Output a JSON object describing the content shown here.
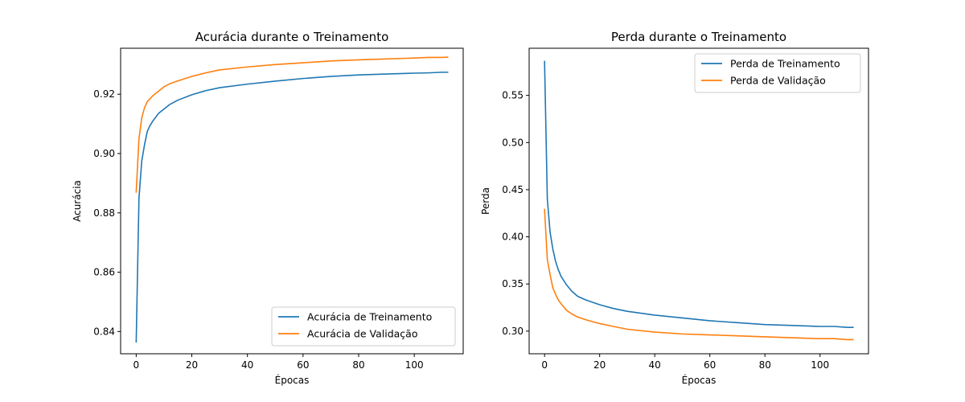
{
  "chart_data": [
    {
      "type": "line",
      "title": "Acurácia durante o Treinamento",
      "xlabel": "Épocas",
      "ylabel": "Acurácia",
      "xlim": [
        -5.6,
        117.6
      ],
      "ylim": [
        0.8325,
        0.9355
      ],
      "xticks": [
        0,
        20,
        40,
        60,
        80,
        100
      ],
      "xtick_labels": [
        "0",
        "20",
        "40",
        "60",
        "80",
        "100"
      ],
      "yticks": [
        0.84,
        0.86,
        0.88,
        0.9,
        0.92
      ],
      "ytick_labels": [
        "0.84",
        "0.86",
        "0.88",
        "0.90",
        "0.92"
      ],
      "grid": false,
      "legend_position": "lower-right",
      "x": [
        0,
        1,
        2,
        3,
        4,
        5,
        6,
        8,
        10,
        12,
        15,
        20,
        25,
        30,
        40,
        50,
        60,
        70,
        80,
        90,
        100,
        105,
        110,
        112
      ],
      "series": [
        {
          "name": "Acurácia de Treinamento",
          "color": "#1f77b4",
          "values": [
            0.8365,
            0.885,
            0.8975,
            0.903,
            0.9075,
            0.9095,
            0.911,
            0.9135,
            0.915,
            0.9165,
            0.918,
            0.9198,
            0.9212,
            0.9222,
            0.9234,
            0.9244,
            0.9253,
            0.926,
            0.9265,
            0.9268,
            0.9271,
            0.9272,
            0.9274,
            0.9274
          ]
        },
        {
          "name": "Acurácia de Validação",
          "color": "#ff7f0e",
          "values": [
            0.887,
            0.905,
            0.912,
            0.9155,
            0.9175,
            0.9185,
            0.9195,
            0.921,
            0.9225,
            0.9235,
            0.9245,
            0.926,
            0.9272,
            0.9282,
            0.9292,
            0.93,
            0.9306,
            0.9312,
            0.9316,
            0.9319,
            0.9322,
            0.9324,
            0.9324,
            0.9325
          ]
        }
      ]
    },
    {
      "type": "line",
      "title": "Perda durante o Treinamento",
      "xlabel": "Épocas",
      "ylabel": "Perda",
      "xlim": [
        -5.6,
        117.6
      ],
      "ylim": [
        0.276,
        0.6
      ],
      "xticks": [
        0,
        20,
        40,
        60,
        80,
        100
      ],
      "xtick_labels": [
        "0",
        "20",
        "40",
        "60",
        "80",
        "100"
      ],
      "yticks": [
        0.3,
        0.35,
        0.4,
        0.45,
        0.5,
        0.55
      ],
      "ytick_labels": [
        "0.30",
        "0.35",
        "0.40",
        "0.45",
        "0.50",
        "0.55"
      ],
      "grid": false,
      "legend_position": "upper-right",
      "x": [
        0,
        1,
        2,
        3,
        4,
        5,
        6,
        8,
        10,
        12,
        15,
        20,
        25,
        30,
        40,
        50,
        60,
        70,
        80,
        90,
        100,
        105,
        110,
        112
      ],
      "series": [
        {
          "name": "Perda de Treinamento",
          "color": "#1f77b4",
          "values": [
            0.586,
            0.44,
            0.405,
            0.387,
            0.374,
            0.365,
            0.358,
            0.349,
            0.342,
            0.337,
            0.333,
            0.328,
            0.324,
            0.321,
            0.317,
            0.314,
            0.311,
            0.309,
            0.307,
            0.306,
            0.305,
            0.305,
            0.304,
            0.304
          ]
        },
        {
          "name": "Perda de Validação",
          "color": "#ff7f0e",
          "values": [
            0.429,
            0.376,
            0.36,
            0.346,
            0.339,
            0.333,
            0.329,
            0.322,
            0.318,
            0.315,
            0.312,
            0.308,
            0.305,
            0.302,
            0.299,
            0.297,
            0.296,
            0.295,
            0.294,
            0.293,
            0.292,
            0.292,
            0.291,
            0.291
          ]
        }
      ]
    }
  ]
}
